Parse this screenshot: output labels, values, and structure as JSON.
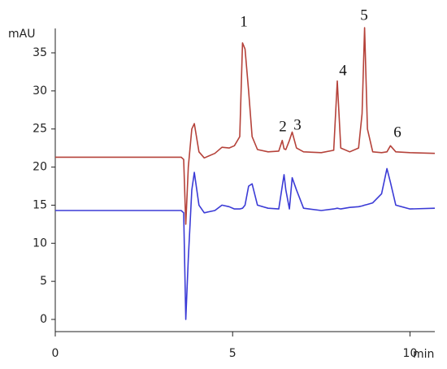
{
  "chart_data": {
    "type": "line",
    "y_label": "mAU",
    "x_label": "min",
    "x": [
      0,
      3.55,
      3.62,
      3.68,
      3.75,
      3.85,
      3.92,
      4.05,
      4.2,
      4.5,
      4.7,
      4.9,
      5.05,
      5.2,
      5.28,
      5.35,
      5.45,
      5.55,
      5.7,
      6.0,
      6.3,
      6.4,
      6.45,
      6.5,
      6.6,
      6.68,
      6.8,
      7.0,
      7.5,
      7.85,
      7.95,
      8.05,
      8.3,
      8.55,
      8.65,
      8.72,
      8.8,
      8.95,
      9.2,
      9.35,
      9.45,
      9.6,
      10,
      10.7
    ],
    "series": [
      {
        "color": "#b5423a",
        "values": [
          21.3,
          21.3,
          21,
          12.5,
          20,
          25,
          25.7,
          22,
          21.2,
          21.8,
          22.6,
          22.5,
          22.8,
          24,
          36.3,
          35.5,
          30,
          24,
          22.3,
          22,
          22.1,
          23.5,
          22.4,
          22.3,
          23.5,
          24.6,
          22.5,
          22,
          21.9,
          22.2,
          31.3,
          22.5,
          22,
          22.5,
          27,
          38.3,
          25,
          22,
          21.9,
          22,
          22.8,
          22,
          21.9,
          21.8
        ]
      },
      {
        "color": "#3b3bd6",
        "values": [
          14.3,
          14.3,
          14,
          0,
          8,
          17,
          19.3,
          15,
          14,
          14.3,
          15,
          14.8,
          14.5,
          14.5,
          14.6,
          15,
          17.5,
          17.8,
          15,
          14.6,
          14.5,
          17.5,
          19,
          17,
          14.5,
          18.6,
          17,
          14.6,
          14.3,
          14.5,
          14.6,
          14.5,
          14.7,
          14.8,
          14.9,
          15,
          15.1,
          15.3,
          16.5,
          19.8,
          18,
          15,
          14.5,
          14.6
        ]
      }
    ],
    "annotations": [
      "1",
      "2",
      "3",
      "4",
      "5",
      "6"
    ],
    "xlim": [
      0,
      10.7
    ],
    "xticks": [
      0,
      5,
      10
    ],
    "ylim": [
      -1.6,
      38.2
    ],
    "yticks": [
      0,
      5,
      10,
      15,
      20,
      25,
      30,
      35
    ]
  }
}
